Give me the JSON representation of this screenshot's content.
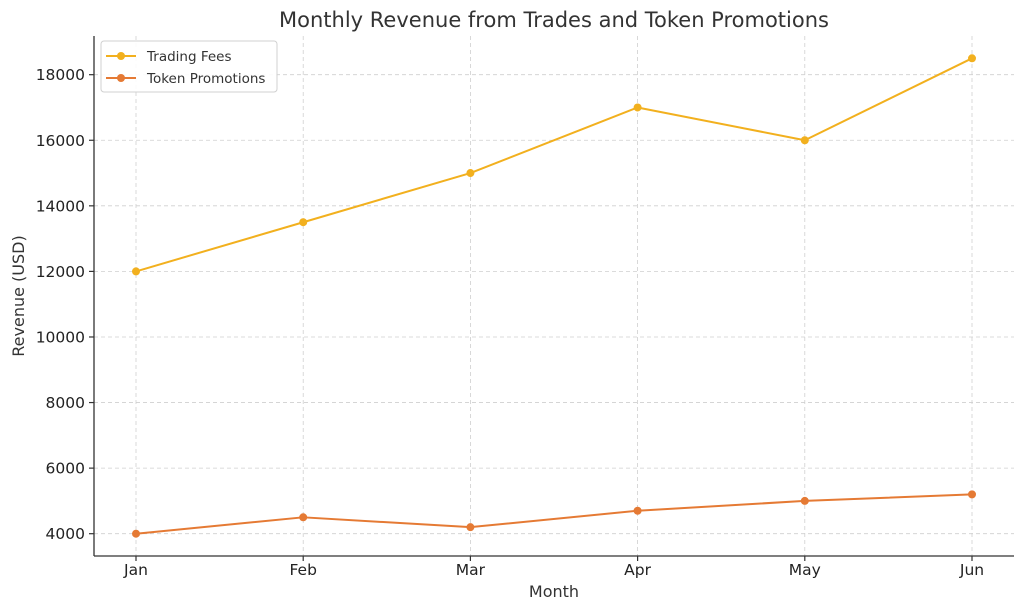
{
  "chart_data": {
    "type": "line",
    "title": "Monthly Revenue from Trades and Token Promotions",
    "xlabel": "Month",
    "ylabel": "Revenue (USD)",
    "categories": [
      "Jan",
      "Feb",
      "Mar",
      "Apr",
      "May",
      "Jun"
    ],
    "series": [
      {
        "name": "Trading Fees",
        "color": "#F2B01E",
        "values": [
          12000,
          13500,
          15000,
          17000,
          16000,
          18500
        ]
      },
      {
        "name": "Token Promotions",
        "color": "#E57A34",
        "values": [
          4000,
          4500,
          4200,
          4700,
          5000,
          5200
        ]
      }
    ],
    "ylim": [
      3320,
      19180
    ],
    "yticks": [
      4000,
      6000,
      8000,
      10000,
      12000,
      14000,
      16000,
      18000
    ],
    "grid": true,
    "legend_position": "top-left",
    "marker": "circle"
  }
}
